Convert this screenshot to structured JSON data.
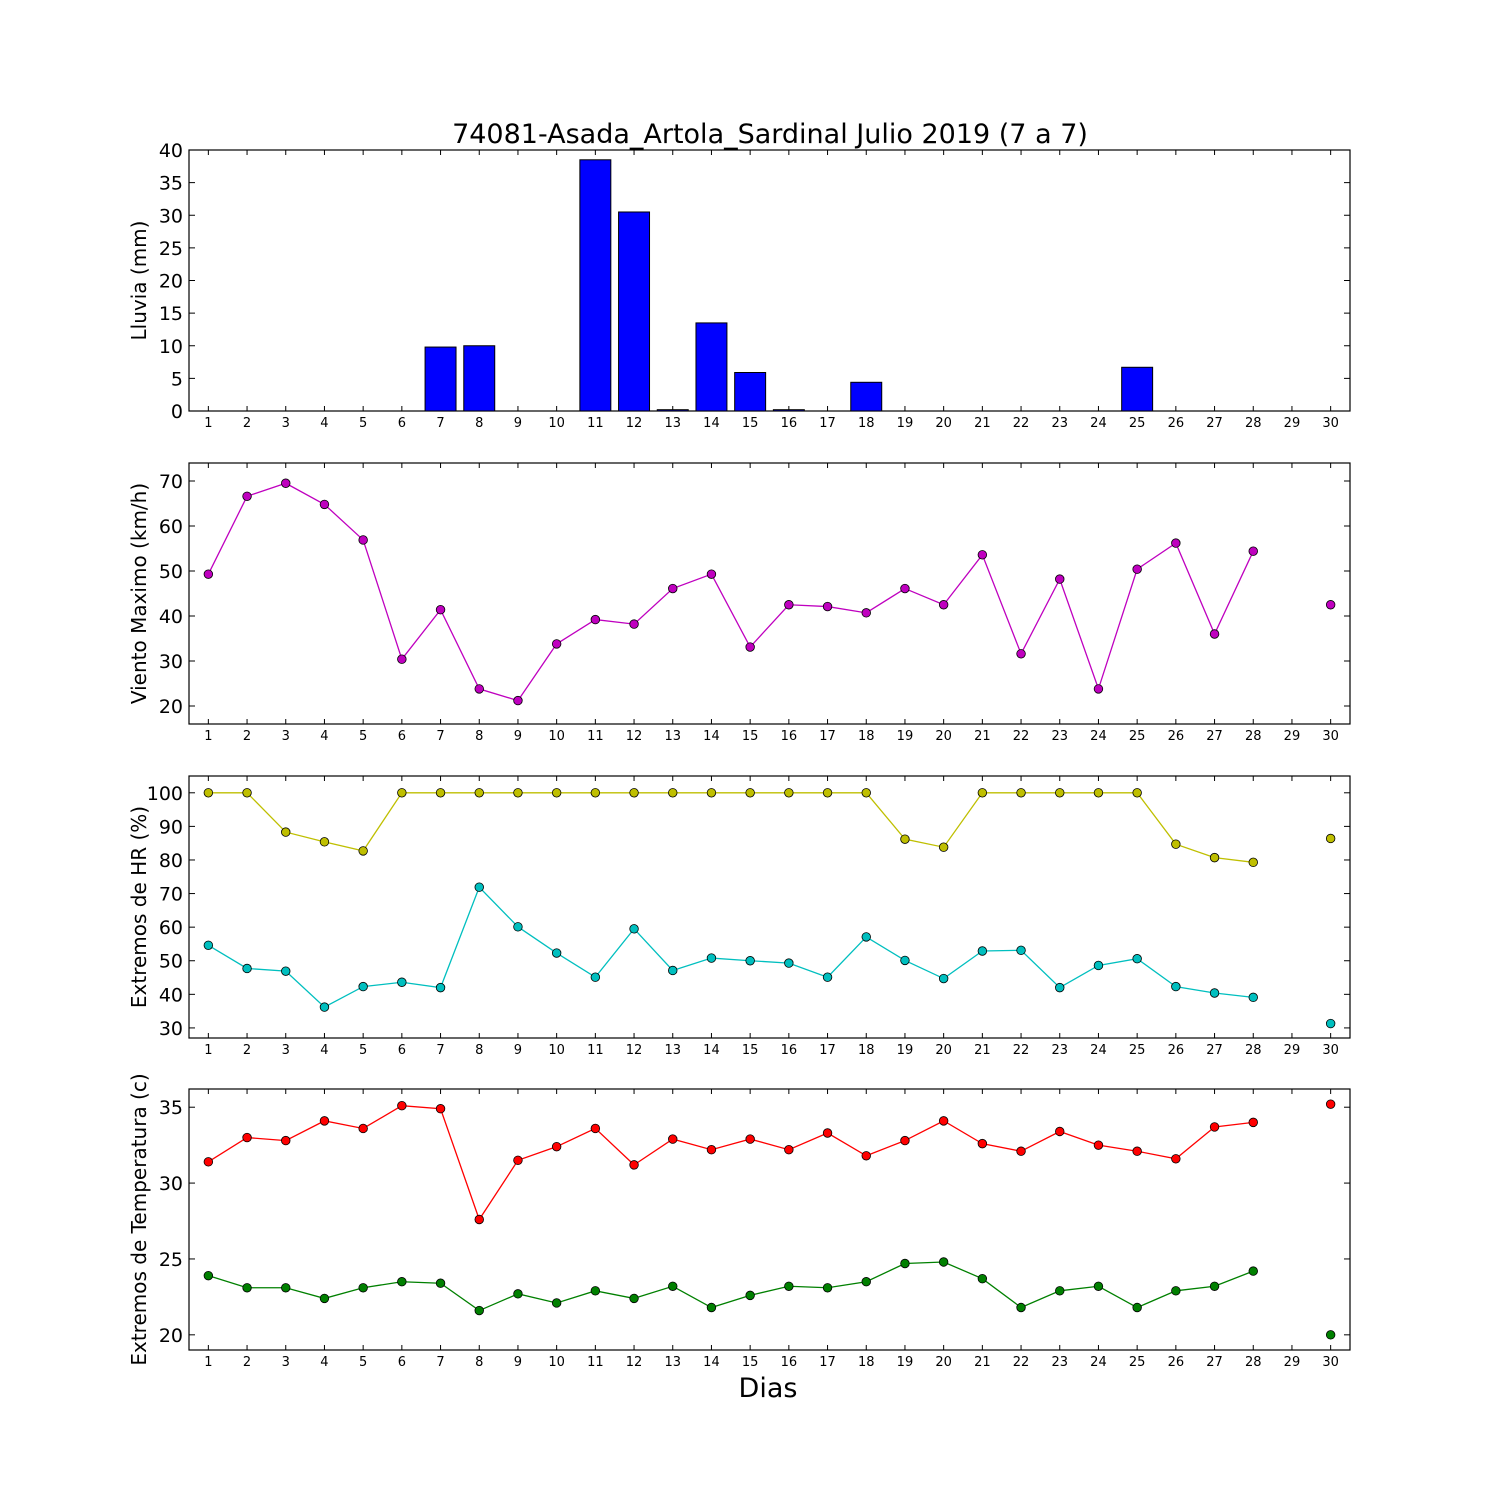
{
  "title": "74081-Asada_Artola_Sardinal Julio 2019  (7 a 7)",
  "xlabel": "Dias",
  "chart_data": [
    {
      "type": "bar",
      "ylabel": "Lluvia (mm)",
      "ylim": [
        0,
        40
      ],
      "yticks": [
        "0",
        "5",
        "10",
        "15",
        "20",
        "25",
        "30",
        "35",
        "40"
      ],
      "x": [
        1,
        2,
        3,
        4,
        5,
        6,
        7,
        8,
        9,
        10,
        11,
        12,
        13,
        14,
        15,
        16,
        17,
        18,
        19,
        20,
        21,
        22,
        23,
        24,
        25,
        26,
        27,
        28,
        29,
        30
      ],
      "xlim": [
        0.5,
        30.5
      ],
      "series": [
        {
          "color": "#0000ff",
          "values": [
            0,
            0,
            0,
            0,
            0,
            0,
            9.8,
            10,
            0,
            0,
            38.5,
            30.5,
            0.2,
            13.5,
            5.9,
            0.2,
            0,
            4.4,
            0,
            0,
            0,
            0,
            0,
            0,
            6.7,
            0,
            0,
            0,
            0,
            0
          ]
        }
      ]
    },
    {
      "type": "line",
      "ylabel": "Viento Maximo (km/h)",
      "ylim": [
        16,
        74
      ],
      "yticks": [
        "20",
        "30",
        "40",
        "50",
        "60",
        "70"
      ],
      "x": [
        1,
        2,
        3,
        4,
        5,
        6,
        7,
        8,
        9,
        10,
        11,
        12,
        13,
        14,
        15,
        16,
        17,
        18,
        19,
        20,
        21,
        22,
        23,
        24,
        25,
        26,
        27,
        28,
        29,
        30
      ],
      "xlim": [
        0.5,
        30.5
      ],
      "series": [
        {
          "color": "#bf00bf",
          "values": [
            49.3,
            66.6,
            69.5,
            64.8,
            56.9,
            30.4,
            41.4,
            23.8,
            21.2,
            33.8,
            39.2,
            38.2,
            46.1,
            49.3,
            33.1,
            42.5,
            42.1,
            40.7,
            46.1,
            42.5,
            53.6,
            31.6,
            48.2,
            23.8,
            50.4,
            56.2,
            36,
            54.4,
            null,
            42.5
          ]
        }
      ]
    },
    {
      "type": "line",
      "ylabel": "Extremos de HR (%)",
      "ylim": [
        27,
        105
      ],
      "yticks": [
        "30",
        "40",
        "50",
        "60",
        "70",
        "80",
        "90",
        "100"
      ],
      "x": [
        1,
        2,
        3,
        4,
        5,
        6,
        7,
        8,
        9,
        10,
        11,
        12,
        13,
        14,
        15,
        16,
        17,
        18,
        19,
        20,
        21,
        22,
        23,
        24,
        25,
        26,
        27,
        28,
        29,
        30
      ],
      "xlim": [
        0.5,
        30.5
      ],
      "series": [
        {
          "color": "#bfbf00",
          "values": [
            100,
            100,
            88.3,
            85.4,
            82.7,
            100,
            100,
            100,
            100,
            100,
            100,
            100,
            100,
            100,
            100,
            100,
            100,
            100,
            86.2,
            83.8,
            100,
            100,
            100,
            100,
            100,
            84.7,
            80.7,
            79.3,
            null,
            86.4
          ]
        },
        {
          "color": "#00bfbf",
          "values": [
            54.6,
            47.7,
            46.9,
            36.2,
            42.3,
            43.6,
            42,
            71.9,
            60.1,
            52.3,
            45.1,
            59.5,
            47.1,
            50.8,
            50,
            49.3,
            45.1,
            57.1,
            50.1,
            44.7,
            52.9,
            53.1,
            42,
            48.6,
            50.6,
            42.3,
            40.4,
            39.1,
            null,
            31.3
          ]
        }
      ]
    },
    {
      "type": "line",
      "ylabel": "Extremos de Temperatura (c)",
      "ylim": [
        19,
        36.2
      ],
      "yticks": [
        "20",
        "25",
        "30",
        "35"
      ],
      "x": [
        1,
        2,
        3,
        4,
        5,
        6,
        7,
        8,
        9,
        10,
        11,
        12,
        13,
        14,
        15,
        16,
        17,
        18,
        19,
        20,
        21,
        22,
        23,
        24,
        25,
        26,
        27,
        28,
        29,
        30
      ],
      "xlim": [
        0.5,
        30.5
      ],
      "series": [
        {
          "color": "#ff0000",
          "values": [
            31.4,
            33,
            32.8,
            34.1,
            33.6,
            35.1,
            34.9,
            27.6,
            31.5,
            32.4,
            33.6,
            31.2,
            32.9,
            32.2,
            32.9,
            32.2,
            33.3,
            31.8,
            32.8,
            34.1,
            32.6,
            32.1,
            33.4,
            32.5,
            32.1,
            31.6,
            33.7,
            34,
            null,
            35.2
          ]
        },
        {
          "color": "#008000",
          "values": [
            23.9,
            23.1,
            23.1,
            22.4,
            23.1,
            23.5,
            23.4,
            21.6,
            22.7,
            22.1,
            22.9,
            22.4,
            23.2,
            21.8,
            22.6,
            23.2,
            23.1,
            23.5,
            24.7,
            24.8,
            23.7,
            21.8,
            22.9,
            23.2,
            21.8,
            22.9,
            23.2,
            24.2,
            null,
            20
          ]
        }
      ]
    }
  ]
}
